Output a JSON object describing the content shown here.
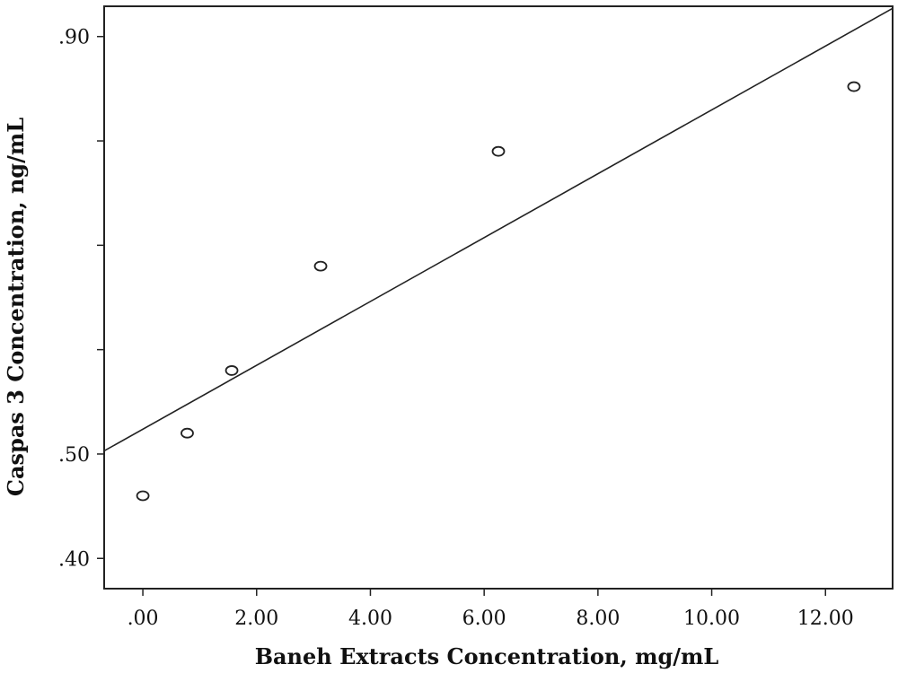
{
  "chart_data": {
    "type": "scatter",
    "xlabel": "Baneh Extracts Concentration, mg/mL",
    "ylabel": "Caspas 3 Concentration, ng/mL",
    "xlim": [
      -0.68,
      13.18
    ],
    "ylim": [
      0.371,
      0.929
    ],
    "x_ticks": [
      0,
      2,
      4,
      6,
      8,
      10,
      12
    ],
    "x_tick_labels": [
      ".00",
      "2.00",
      "4.00",
      "6.00",
      "8.00",
      "10.00",
      "12.00"
    ],
    "y_ticks": [
      0.4,
      0.5,
      0.6,
      0.7,
      0.8,
      0.9
    ],
    "y_tick_labels": [
      ".40",
      ".50",
      "",
      "",
      "",
      ".90"
    ],
    "points": [
      {
        "x": 0,
        "y": 0.46
      },
      {
        "x": 0.78,
        "y": 0.52
      },
      {
        "x": 1.5625,
        "y": 0.58
      },
      {
        "x": 3.125,
        "y": 0.68
      },
      {
        "x": 6.25,
        "y": 0.79
      },
      {
        "x": 12.5,
        "y": 0.852
      }
    ],
    "fit_line": {
      "x": [
        -0.68,
        13.18
      ],
      "y": [
        0.503,
        0.927
      ]
    },
    "grid": false
  }
}
